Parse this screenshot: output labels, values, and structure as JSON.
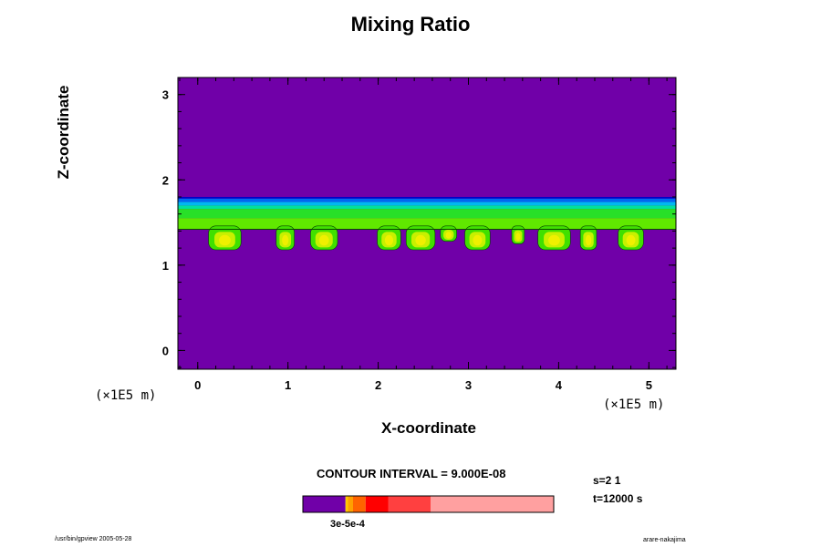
{
  "chart_data": {
    "type": "heatmap",
    "title": "Mixing Ratio",
    "xlabel": "X-coordinate",
    "ylabel": "Z-coordinate",
    "x_unit": "(×1E5 m)",
    "xlim": [
      -0.22,
      5.3
    ],
    "ylim": [
      -0.22,
      3.2
    ],
    "xticks": [
      0,
      1,
      2,
      3,
      4,
      5
    ],
    "yticks": [
      0,
      1,
      2,
      3
    ],
    "background_color": "#7000a8",
    "contour_interval": "CONTOUR INTERVAL = 9.000E-08",
    "mixing_layer": {
      "z_bottom": 1.42,
      "z_top": 1.8
    },
    "layer_bands": [
      {
        "z": [
          1.78,
          1.8
        ],
        "color": "#0000c8"
      },
      {
        "z": [
          1.74,
          1.78
        ],
        "color": "#0068f0"
      },
      {
        "z": [
          1.7,
          1.74
        ],
        "color": "#00b8f0"
      },
      {
        "z": [
          1.66,
          1.7
        ],
        "color": "#00e0a0"
      },
      {
        "z": [
          1.55,
          1.66
        ],
        "color": "#28e028"
      },
      {
        "z": [
          1.42,
          1.55
        ],
        "color": "#60e800"
      }
    ],
    "plumes": [
      {
        "x": 0.3,
        "z_bottom": 1.18,
        "halfwidth": 0.18
      },
      {
        "x": 0.97,
        "z_bottom": 1.18,
        "halfwidth": 0.1
      },
      {
        "x": 1.4,
        "z_bottom": 1.18,
        "halfwidth": 0.15
      },
      {
        "x": 2.12,
        "z_bottom": 1.18,
        "halfwidth": 0.13
      },
      {
        "x": 2.47,
        "z_bottom": 1.18,
        "halfwidth": 0.16
      },
      {
        "x": 2.78,
        "z_bottom": 1.28,
        "halfwidth": 0.09
      },
      {
        "x": 3.1,
        "z_bottom": 1.18,
        "halfwidth": 0.14
      },
      {
        "x": 3.55,
        "z_bottom": 1.25,
        "halfwidth": 0.07
      },
      {
        "x": 3.95,
        "z_bottom": 1.18,
        "halfwidth": 0.18
      },
      {
        "x": 4.33,
        "z_bottom": 1.18,
        "halfwidth": 0.09
      },
      {
        "x": 4.8,
        "z_bottom": 1.18,
        "halfwidth": 0.14
      }
    ],
    "colorbar": {
      "segments": [
        {
          "frac": 0.17,
          "color": "#7000a8"
        },
        {
          "frac": 0.01,
          "color": "#ffc800"
        },
        {
          "frac": 0.02,
          "color": "#ffa000"
        },
        {
          "frac": 0.05,
          "color": "#ff6400"
        },
        {
          "frac": 0.09,
          "color": "#ff0000"
        },
        {
          "frac": 0.17,
          "color": "#ff4040"
        },
        {
          "frac": 0.49,
          "color": "#ffa0a0"
        }
      ],
      "label": "3e-5e-4"
    },
    "step_info": {
      "s": "s=2 1",
      "t": "t=12000 s"
    }
  },
  "footer": {
    "left": "/usr/bin/gpview 2005-05-28",
    "right": "arare-nakajima"
  }
}
